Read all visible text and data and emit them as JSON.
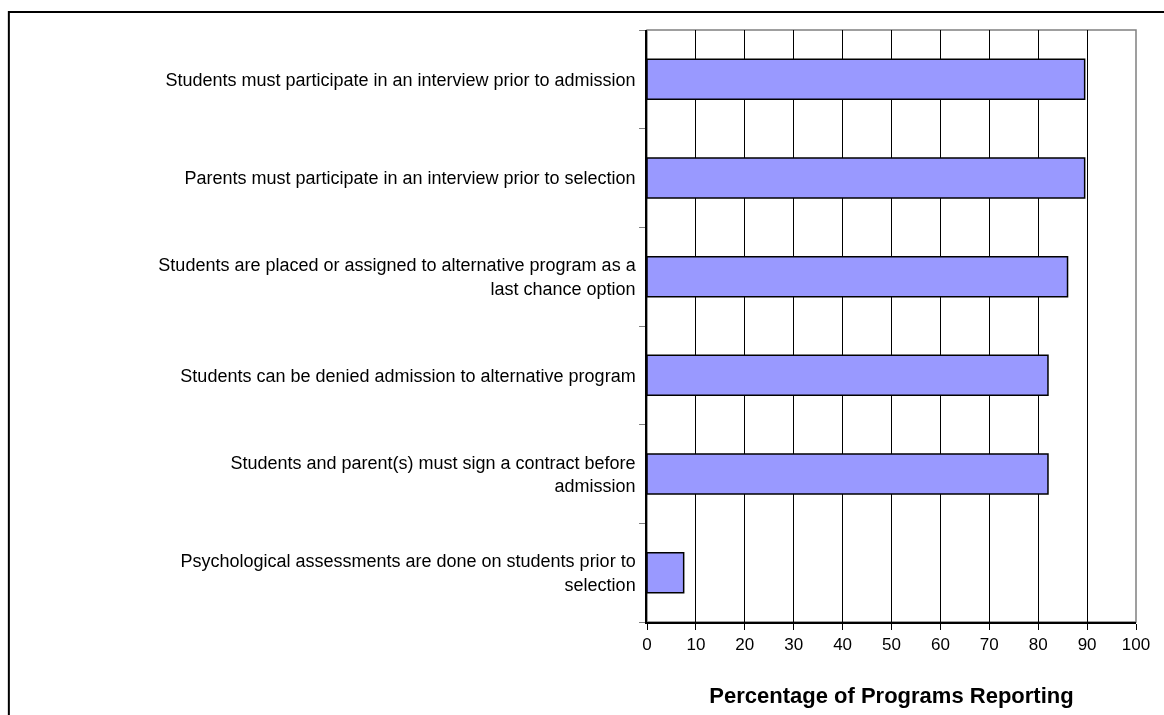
{
  "chart_data": {
    "type": "bar",
    "orientation": "horizontal",
    "xlabel": "Percentage of Programs Reporting",
    "categories": [
      "Students must participate in an interview prior to admission",
      "Parents must participate in an interview prior to selection",
      "Students are placed or assigned to alternative program as a last chance option",
      "Students can be denied admission to alternative program",
      "Students and parent(s) must sign a contract before admission",
      "Psychological assessments are done on students prior to selection"
    ],
    "values": [
      89.5,
      89.5,
      86,
      82,
      82,
      7.5
    ],
    "color": "#9999ff",
    "xlim": [
      0,
      100
    ],
    "xticks": [
      0,
      10,
      20,
      30,
      40,
      50,
      60,
      70,
      80,
      90,
      100
    ],
    "grid": "x"
  }
}
